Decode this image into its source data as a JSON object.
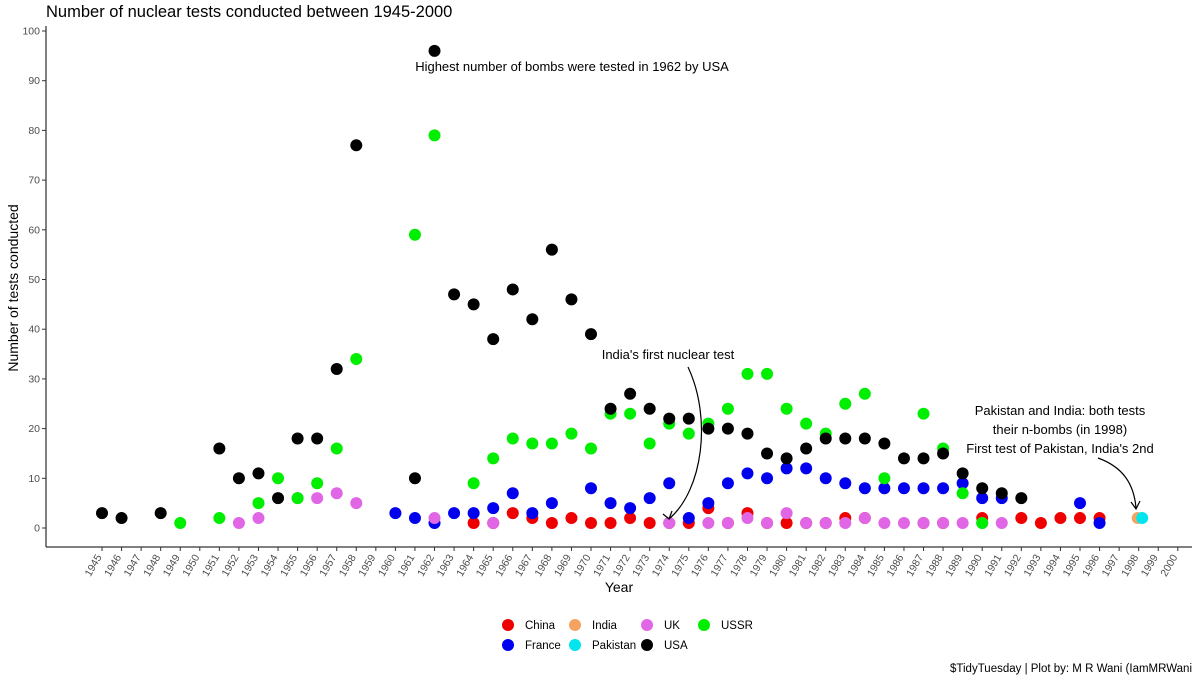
{
  "chart_data": {
    "type": "scatter",
    "title": "Number of nuclear tests conducted between 1945-2000",
    "xlabel": "Year",
    "ylabel": "Number of tests conducted",
    "xlim": [
      1945,
      2000
    ],
    "ylim": [
      0,
      100
    ],
    "x_ticks": [
      1945,
      1946,
      1947,
      1948,
      1949,
      1950,
      1951,
      1952,
      1953,
      1954,
      1955,
      1956,
      1957,
      1958,
      1959,
      1960,
      1961,
      1962,
      1963,
      1964,
      1965,
      1966,
      1967,
      1968,
      1969,
      1970,
      1971,
      1972,
      1973,
      1974,
      1975,
      1976,
      1977,
      1978,
      1979,
      1980,
      1981,
      1982,
      1983,
      1984,
      1985,
      1986,
      1987,
      1988,
      1989,
      1990,
      1991,
      1992,
      1993,
      1994,
      1995,
      1996,
      1997,
      1998,
      1999,
      2000
    ],
    "y_ticks": [
      0,
      10,
      20,
      30,
      40,
      50,
      60,
      70,
      80,
      90,
      100
    ],
    "grid": false,
    "legend_position": "bottom",
    "series": [
      {
        "name": "China",
        "color": "#ee0000",
        "x": [
          1964,
          1965,
          1966,
          1967,
          1968,
          1969,
          1970,
          1971,
          1972,
          1973,
          1974,
          1975,
          1976,
          1977,
          1978,
          1979,
          1980,
          1981,
          1982,
          1983,
          1984,
          1987,
          1988,
          1990,
          1992,
          1993,
          1994,
          1995,
          1996
        ],
        "y": [
          1,
          1,
          3,
          2,
          1,
          2,
          1,
          1,
          2,
          1,
          1,
          1,
          4,
          1,
          3,
          1,
          1,
          1,
          1,
          2,
          2,
          1,
          1,
          2,
          2,
          1,
          2,
          2,
          2
        ]
      },
      {
        "name": "France",
        "color": "#0000ee",
        "x": [
          1960,
          1961,
          1962,
          1963,
          1964,
          1965,
          1966,
          1967,
          1968,
          1970,
          1971,
          1972,
          1973,
          1974,
          1975,
          1976,
          1977,
          1978,
          1979,
          1980,
          1981,
          1982,
          1983,
          1984,
          1985,
          1986,
          1987,
          1988,
          1989,
          1990,
          1991,
          1995,
          1996
        ],
        "y": [
          3,
          2,
          1,
          3,
          3,
          4,
          7,
          3,
          5,
          8,
          5,
          4,
          6,
          9,
          2,
          5,
          9,
          11,
          10,
          12,
          12,
          10,
          9,
          8,
          8,
          8,
          8,
          8,
          9,
          6,
          6,
          5,
          1
        ]
      },
      {
        "name": "India",
        "color": "#f4a460",
        "x": [
          1974,
          1998
        ],
        "y": [
          1,
          2
        ]
      },
      {
        "name": "Pakistan",
        "color": "#00e5ee",
        "x": [
          1998
        ],
        "y": [
          2
        ]
      },
      {
        "name": "UK",
        "color": "#e066e6",
        "x": [
          1952,
          1953,
          1955,
          1956,
          1957,
          1958,
          1962,
          1965,
          1974,
          1976,
          1977,
          1978,
          1979,
          1980,
          1981,
          1982,
          1983,
          1984,
          1985,
          1986,
          1987,
          1988,
          1989,
          1990,
          1991
        ],
        "y": [
          1,
          2,
          6,
          6,
          7,
          5,
          2,
          1,
          1,
          1,
          1,
          2,
          1,
          3,
          1,
          1,
          1,
          2,
          1,
          1,
          1,
          1,
          1,
          1,
          1
        ]
      },
      {
        "name": "USA",
        "color": "#000000",
        "x": [
          1945,
          1946,
          1948,
          1951,
          1952,
          1953,
          1954,
          1955,
          1956,
          1957,
          1958,
          1961,
          1962,
          1963,
          1964,
          1965,
          1966,
          1967,
          1968,
          1969,
          1970,
          1971,
          1972,
          1973,
          1974,
          1975,
          1976,
          1977,
          1978,
          1979,
          1980,
          1981,
          1982,
          1983,
          1984,
          1985,
          1986,
          1987,
          1988,
          1989,
          1990,
          1991,
          1992
        ],
        "y": [
          3,
          2,
          3,
          16,
          10,
          11,
          6,
          18,
          18,
          32,
          77,
          10,
          96,
          47,
          45,
          38,
          48,
          42,
          56,
          46,
          39,
          24,
          27,
          24,
          22,
          22,
          20,
          20,
          19,
          15,
          14,
          16,
          18,
          18,
          18,
          17,
          14,
          14,
          15,
          11,
          8,
          7,
          6
        ]
      },
      {
        "name": "USSR",
        "color": "#00ee00",
        "x": [
          1949,
          1951,
          1953,
          1954,
          1955,
          1956,
          1957,
          1958,
          1961,
          1962,
          1964,
          1965,
          1966,
          1967,
          1968,
          1969,
          1970,
          1971,
          1972,
          1973,
          1974,
          1975,
          1976,
          1977,
          1978,
          1979,
          1980,
          1981,
          1982,
          1983,
          1984,
          1985,
          1987,
          1988,
          1989,
          1990
        ],
        "y": [
          1,
          2,
          5,
          10,
          6,
          9,
          16,
          34,
          59,
          79,
          9,
          14,
          18,
          17,
          17,
          19,
          16,
          23,
          23,
          17,
          21,
          19,
          21,
          24,
          31,
          31,
          24,
          21,
          19,
          25,
          27,
          10,
          23,
          16,
          7,
          1
        ]
      }
    ],
    "annotations": [
      {
        "text": "Highest number of bombs were tested in 1962 by USA",
        "x": 1962,
        "y": 96
      },
      {
        "text": "India's first nuclear test",
        "x": 1974,
        "y": 1
      },
      {
        "lines": [
          "Pakistan and India: both tests",
          "their n-bombs (in 1998)",
          "First test of Pakistan, India's 2nd"
        ],
        "x": 1998,
        "y": 2
      }
    ],
    "legend": [
      {
        "name": "China",
        "color": "#ee0000"
      },
      {
        "name": "France",
        "color": "#0000ee"
      },
      {
        "name": "India",
        "color": "#f4a460"
      },
      {
        "name": "Pakistan",
        "color": "#00e5ee"
      },
      {
        "name": "UK",
        "color": "#e066e6"
      },
      {
        "name": "USSR",
        "color": "#00ee00"
      },
      {
        "name": "USA",
        "color": "#000000"
      }
    ],
    "caption": "$TidyTuesday | Plot by: M R Wani (IamMRWani"
  }
}
